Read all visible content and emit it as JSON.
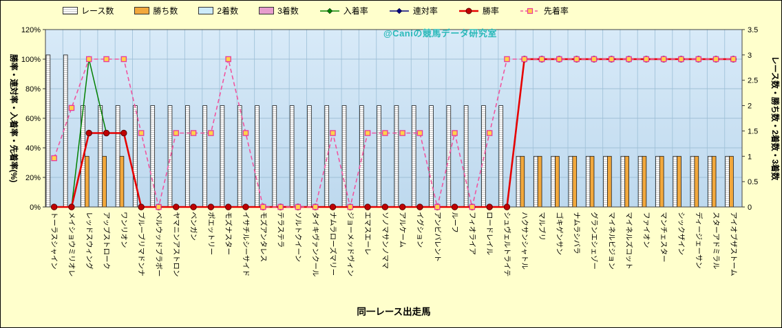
{
  "watermark": "@Caniの競馬データ研究室",
  "colors": {
    "background": "#FFFFCC",
    "plot_bg_top": "#D8EAF8",
    "plot_bg_bottom": "#BED9EE",
    "grid_h": "#9FBFD6",
    "grid_v": "#A6C6DC",
    "races_bar": "#FDFDFD",
    "wins_bar": "#F2A83C",
    "second_bar": "#CDEBFA",
    "third_bar": "#E79DCD",
    "nyuchaku_line": "#008000",
    "rentai_line": "#000080",
    "shoritsu_line": "#E60000",
    "shoritsu_marker": "#C00000",
    "senchaku_line": "#F0559F",
    "senchaku_marker_fill": "#FFD24A",
    "senchaku_marker_stroke": "#E8399B",
    "watermark_color": "#29B9B9"
  },
  "legend_items": [
    {
      "label": "レース数",
      "kind": "bar",
      "color": "races_bar",
      "pattern": true
    },
    {
      "label": "勝ち数",
      "kind": "bar",
      "color": "wins_bar",
      "pattern": false
    },
    {
      "label": "2着数",
      "kind": "bar",
      "color": "second_bar",
      "pattern": false
    },
    {
      "label": "3着数",
      "kind": "bar",
      "color": "third_bar",
      "pattern": false
    },
    {
      "label": "入着率",
      "kind": "line",
      "marker": "diamond",
      "color": "nyuchaku_line"
    },
    {
      "label": "連対率",
      "kind": "line",
      "marker": "diamond",
      "color": "rentai_line"
    },
    {
      "label": "勝率",
      "kind": "line",
      "marker": "circle",
      "color": "shoritsu_line"
    },
    {
      "label": "先着率",
      "kind": "line-dashed",
      "marker": "square",
      "color": "senchaku_line"
    }
  ],
  "chart_data": {
    "type": "bar",
    "title": "",
    "xlabel": "同一レース出走馬",
    "watermark": "@Caniの競馬データ研究室",
    "legend_position": "top",
    "grid": true,
    "left_axis": {
      "label": "勝率・連対率・入着率・先着率(%)",
      "min": 0,
      "max": 120,
      "ticks": [
        "0%",
        "20%",
        "40%",
        "60%",
        "80%",
        "100%",
        "120%"
      ]
    },
    "right_axis": {
      "label": "レース数・勝ち数・2着数・3着数",
      "min": 0,
      "max": 3.5,
      "ticks": [
        "0",
        "0.5",
        "1",
        "1.5",
        "2",
        "2.5",
        "3",
        "3.5"
      ]
    },
    "categories": [
      "トーラスシャイン",
      "メイショウミリオレ",
      "レッドスウィング",
      "アップストローク",
      "ワンリオン",
      "ブルーブリマドンナ",
      "ベルウッドブラボー",
      "ヤマニンアストロン",
      "ベンガン",
      "ポエットリー",
      "モズナスター",
      "イサチルシーサイド",
      "モズアンタレス",
      "テラステラ",
      "ソルトクイーン",
      "タイキヴァンクール",
      "ナムラローズマリー",
      "ジョーメッドヴィン",
      "エマスエーレ",
      "ソノマサンノママ",
      "アルケーム",
      "イグション",
      "アンビバレント",
      "ルーフ",
      "フィオライア",
      "ロードレイル",
      "シュヴェルトライテ",
      "ハクサンシャトル",
      "マルブリ",
      "ゴキゲンサン",
      "ナムラシバラ",
      "グランエシェゾー",
      "マイネルビジョン",
      "マイネルズコット",
      "ファイオン",
      "マンチェスター",
      "シックザイン",
      "ディージェーサン",
      "スターアドミラル",
      "アイオブザストーム"
    ],
    "bar_series": [
      {
        "name": "レース数",
        "axis": "right",
        "values": [
          3,
          3,
          2,
          2,
          2,
          2,
          2,
          2,
          2,
          2,
          2,
          2,
          2,
          2,
          2,
          2,
          2,
          2,
          2,
          2,
          2,
          2,
          2,
          2,
          2,
          2,
          2,
          1,
          1,
          1,
          1,
          1,
          1,
          1,
          1,
          1,
          1,
          1,
          1,
          1
        ]
      },
      {
        "name": "勝ち数",
        "axis": "right",
        "values": [
          0,
          0,
          1,
          1,
          1,
          0,
          0,
          0,
          0,
          0,
          0,
          0,
          0,
          0,
          0,
          0,
          0,
          0,
          0,
          0,
          0,
          0,
          0,
          0,
          0,
          0,
          0,
          1,
          1,
          1,
          1,
          1,
          1,
          1,
          1,
          1,
          1,
          1,
          1,
          1
        ]
      },
      {
        "name": "2着数",
        "axis": "right",
        "values": [
          0,
          0,
          0,
          0,
          0,
          0,
          0,
          0,
          0,
          0,
          0,
          0,
          0,
          0,
          0,
          0,
          0,
          0,
          0,
          0,
          0,
          0,
          0,
          0,
          0,
          0,
          0,
          0,
          0,
          0,
          0,
          0,
          0,
          0,
          0,
          0,
          0,
          0,
          0,
          0
        ]
      },
      {
        "name": "3着数",
        "axis": "right",
        "values": [
          0,
          0,
          0,
          0,
          0,
          0,
          0,
          0,
          0,
          0,
          0,
          0,
          0,
          0,
          0,
          0,
          0,
          0,
          0,
          0,
          0,
          0,
          0,
          0,
          0,
          0,
          0,
          0,
          0,
          0,
          0,
          0,
          0,
          0,
          0,
          0,
          0,
          0,
          0,
          0
        ]
      }
    ],
    "line_series": [
      {
        "name": "入着率",
        "axis": "left",
        "style": "solid",
        "marker": "diamond",
        "values": [
          0,
          0,
          100,
          50,
          50,
          0,
          0,
          0,
          0,
          0,
          0,
          0,
          0,
          0,
          0,
          0,
          0,
          0,
          0,
          0,
          0,
          0,
          0,
          0,
          0,
          0,
          0,
          100,
          100,
          100,
          100,
          100,
          100,
          100,
          100,
          100,
          100,
          100,
          100,
          100
        ]
      },
      {
        "name": "連対率",
        "axis": "left",
        "style": "solid",
        "marker": "diamond",
        "values": [
          0,
          0,
          50,
          50,
          50,
          0,
          0,
          0,
          0,
          0,
          0,
          0,
          0,
          0,
          0,
          0,
          0,
          0,
          0,
          0,
          0,
          0,
          0,
          0,
          0,
          0,
          0,
          100,
          100,
          100,
          100,
          100,
          100,
          100,
          100,
          100,
          100,
          100,
          100,
          100
        ]
      },
      {
        "name": "勝率",
        "axis": "left",
        "style": "solid",
        "marker": "circle",
        "values": [
          0,
          0,
          50,
          50,
          50,
          0,
          0,
          0,
          0,
          0,
          0,
          0,
          0,
          0,
          0,
          0,
          0,
          0,
          0,
          0,
          0,
          0,
          0,
          0,
          0,
          0,
          0,
          100,
          100,
          100,
          100,
          100,
          100,
          100,
          100,
          100,
          100,
          100,
          100,
          100
        ]
      },
      {
        "name": "先着率",
        "axis": "left",
        "style": "dashed",
        "marker": "square",
        "values": [
          33,
          67,
          100,
          100,
          100,
          50,
          0,
          50,
          50,
          50,
          100,
          50,
          0,
          0,
          0,
          0,
          50,
          0,
          50,
          50,
          50,
          50,
          0,
          50,
          0,
          50,
          100,
          100,
          100,
          100,
          100,
          100,
          100,
          100,
          100,
          100,
          100,
          100,
          100,
          100
        ]
      }
    ]
  }
}
